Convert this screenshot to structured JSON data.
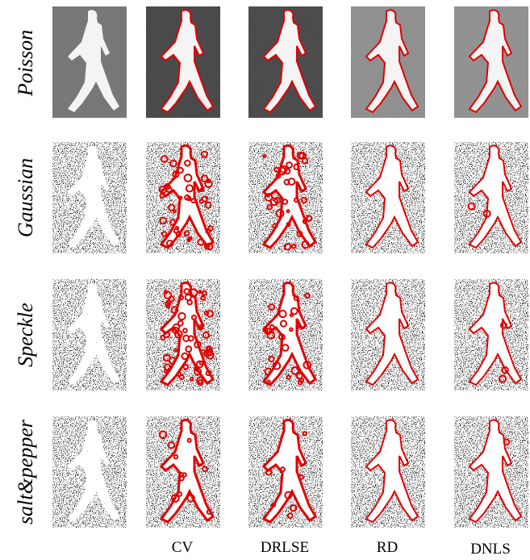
{
  "row_labels": [
    "Poisson",
    "Gaussian",
    "Speckle",
    "salt&pepper"
  ],
  "column_labels": [
    "CV",
    "DRLSE",
    "RD",
    "DNLS"
  ]
}
